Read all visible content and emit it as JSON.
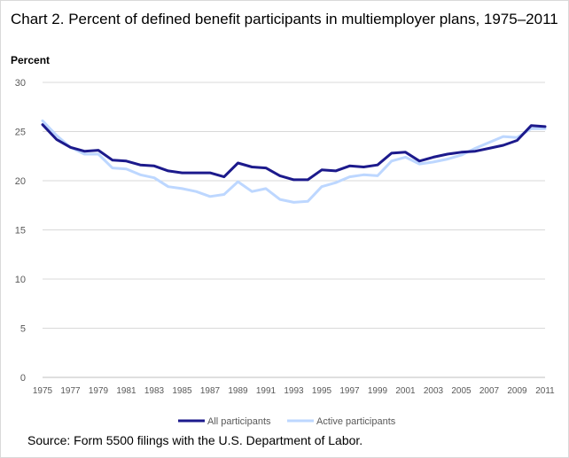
{
  "title": "Chart 2. Percent of defined benefit participants in multiemployer plans, 1975–2011",
  "source": "Source: Form 5500  filings with the U.S. Department of Labor.",
  "chart_data": {
    "type": "line",
    "ylabel": "Percent",
    "xlabel": "",
    "ylim": [
      0,
      30
    ],
    "yticks": [
      0,
      5,
      10,
      15,
      20,
      25,
      30
    ],
    "xticks": [
      1975,
      1977,
      1979,
      1981,
      1983,
      1985,
      1987,
      1989,
      1991,
      1993,
      1995,
      1997,
      1999,
      2001,
      2003,
      2005,
      2007,
      2009,
      2011
    ],
    "grid": "horizontal",
    "legend_position": "bottom",
    "x": [
      1975,
      1976,
      1977,
      1978,
      1979,
      1980,
      1981,
      1982,
      1983,
      1984,
      1985,
      1986,
      1987,
      1988,
      1989,
      1990,
      1991,
      1992,
      1993,
      1994,
      1995,
      1996,
      1997,
      1998,
      1999,
      2000,
      2001,
      2002,
      2003,
      2004,
      2005,
      2006,
      2007,
      2008,
      2009,
      2010,
      2011
    ],
    "series": [
      {
        "name": "All participants",
        "color": "#1c1a8c",
        "values": [
          25.7,
          24.2,
          23.4,
          23.0,
          23.1,
          22.1,
          22.0,
          21.6,
          21.5,
          21.0,
          20.8,
          20.8,
          20.8,
          20.4,
          21.8,
          21.4,
          21.3,
          20.5,
          20.1,
          20.1,
          21.1,
          21.0,
          21.5,
          21.4,
          21.6,
          22.8,
          22.9,
          22.0,
          22.4,
          22.7,
          22.9,
          23.0,
          23.3,
          23.6,
          24.1,
          25.6,
          25.5
        ]
      },
      {
        "name": "Active participants",
        "color": "#bdd7ff",
        "values": [
          26.1,
          24.6,
          23.4,
          22.7,
          22.7,
          21.3,
          21.2,
          20.6,
          20.3,
          19.4,
          19.2,
          18.9,
          18.4,
          18.6,
          19.9,
          18.9,
          19.2,
          18.1,
          17.8,
          17.9,
          19.4,
          19.8,
          20.4,
          20.6,
          20.5,
          22.0,
          22.4,
          21.7,
          21.9,
          22.2,
          22.6,
          23.3,
          23.9,
          24.5,
          24.4,
          25.3,
          25.3
        ]
      }
    ]
  }
}
